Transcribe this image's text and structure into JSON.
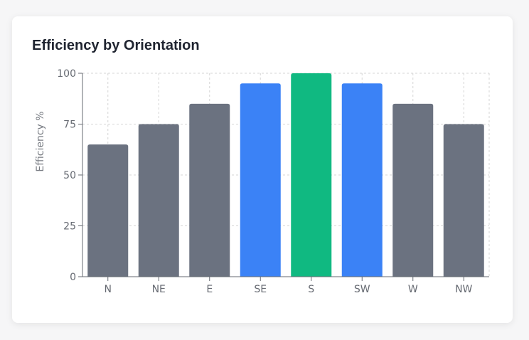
{
  "chart_data": {
    "type": "bar",
    "title": "Efficiency by Orientation",
    "xlabel": "",
    "ylabel": "Efficiency %",
    "categories": [
      "N",
      "NE",
      "E",
      "SE",
      "S",
      "SW",
      "W",
      "NW"
    ],
    "values": [
      65,
      75,
      85,
      95,
      100,
      95,
      85,
      75
    ],
    "bar_colors": [
      "#6b7280",
      "#6b7280",
      "#6b7280",
      "#3b82f6",
      "#10b981",
      "#3b82f6",
      "#6b7280",
      "#6b7280"
    ],
    "ylim": [
      0,
      100
    ],
    "yticks": [
      0,
      25,
      50,
      75,
      100
    ],
    "grid": true
  }
}
